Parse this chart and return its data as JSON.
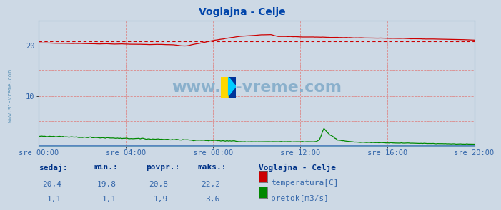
{
  "title": "Voglajna - Celje",
  "bg_color": "#cdd9e5",
  "plot_bg_color": "#cdd9e5",
  "grid_v_color": "#dd8888",
  "grid_h_color": "#dd8888",
  "border_color": "#6699bb",
  "x_tick_labels": [
    "sre 00:00",
    "sre 04:00",
    "sre 08:00",
    "sre 12:00",
    "sre 16:00",
    "sre 20:00"
  ],
  "y_ticks": [
    10,
    20
  ],
  "y_max": 25,
  "temp_color": "#cc0000",
  "flow_color": "#008800",
  "avg_temp": 20.8,
  "watermark_text": "www.si-vreme.com",
  "watermark_color": "#8ab0cc",
  "title_color": "#0044aa",
  "tick_color": "#3366aa",
  "legend_title": "Voglajna - Celje",
  "sedaj_label": "sedaj:",
  "min_label": "min.:",
  "povpr_label": "povpr.:",
  "maks_label": "maks.:",
  "temp_sedaj": "20,4",
  "temp_min": "19,8",
  "temp_povpr": "20,8",
  "temp_maks": "22,2",
  "flow_sedaj": "1,1",
  "flow_min": "1,1",
  "flow_povpr": "1,9",
  "flow_maks": "3,6",
  "temp_label": "temperatura[C]",
  "flow_label": "pretok[m3/s]",
  "label_color": "#3366aa",
  "n_points": 288
}
